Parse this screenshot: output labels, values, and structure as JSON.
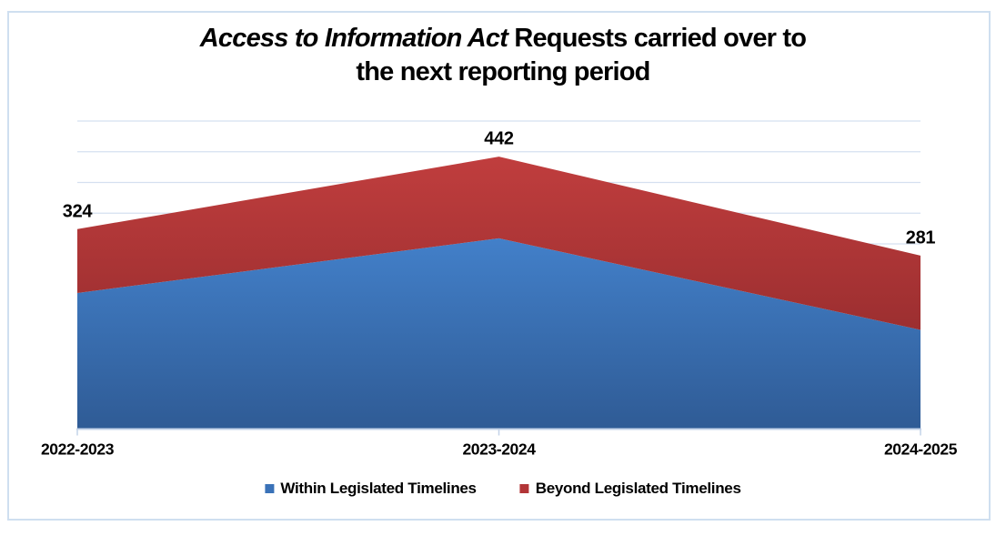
{
  "title": {
    "line1_italic": "Access to Information Act",
    "line1_rest": " Requests carried over to",
    "line2": "the next reporting period"
  },
  "chart_data": {
    "type": "area",
    "stacked": true,
    "title": "Access to Information Act Requests carried over to the next reporting period",
    "categories": [
      "2022-2023",
      "2023-2024",
      "2024-2025"
    ],
    "series": [
      {
        "name": "Within Legislated Timelines",
        "values": [
          220,
          309,
          160
        ],
        "color_top": "#4381CB",
        "color_bottom": "#2F5B95"
      },
      {
        "name": "Beyond Legislated Timelines",
        "values": [
          104,
          133,
          121
        ],
        "color_top": "#C13E3E",
        "color_bottom": "#8F292B"
      }
    ],
    "totals": [
      324,
      442,
      281
    ],
    "total_labels": [
      "324",
      "442",
      "281"
    ],
    "xlabel": "",
    "ylabel": "",
    "ylim": [
      0,
      500
    ],
    "gridline_step": 50,
    "grid": true,
    "y_axis_labels_shown": false,
    "legend_position": "bottom",
    "colors": {
      "grid": "#D5E0F0",
      "axis": "#C3D2E8",
      "frame_border": "#CFDFF0",
      "label_text": "#000000"
    }
  },
  "legend": {
    "items": [
      {
        "label": "Within Legislated Timelines",
        "color": "#3A72B8"
      },
      {
        "label": "Beyond Legislated Timelines",
        "color": "#B23537"
      }
    ]
  }
}
